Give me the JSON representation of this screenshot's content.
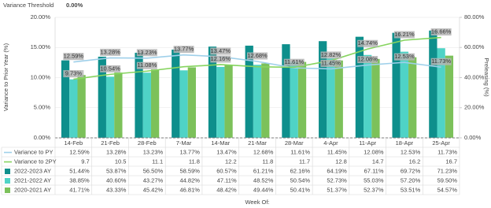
{
  "chart_data": {
    "type": "combo",
    "threshold": {
      "label": "Variance Threshold",
      "value_label": "0.00%",
      "value": 0
    },
    "y_label": "Variance to Prior Year (%)",
    "y2_label": "Preleasing (%)",
    "x_label": "Week Of:",
    "categories": [
      "14-Feb",
      "21-Feb",
      "28-Feb",
      "7-Mar",
      "14-Mar",
      "21-Mar",
      "28-Mar",
      "4-Apr",
      "11-Apr",
      "18-Apr",
      "25-Apr"
    ],
    "ylim": [
      0,
      20
    ],
    "yticks": [
      {
        "value": 0,
        "label": "0.00%"
      },
      {
        "value": 5,
        "label": "5.00%"
      },
      {
        "value": 10,
        "label": "10.00%"
      },
      {
        "value": 15,
        "label": "15.00%"
      },
      {
        "value": 20,
        "label": "20.00%"
      }
    ],
    "y2lim": [
      0,
      80
    ],
    "y2ticks": [
      {
        "value": 0,
        "label": "0.00%"
      },
      {
        "value": 20,
        "label": "20.00%"
      },
      {
        "value": 40,
        "label": "40.00%"
      },
      {
        "value": 60,
        "label": "60.00%"
      },
      {
        "value": 80,
        "label": "80.00%"
      }
    ],
    "series": [
      {
        "name": "Variance to PY",
        "kind": "line",
        "color": "#9fd0ea",
        "values": [
          12.59,
          13.28,
          13.23,
          13.77,
          13.47,
          12.68,
          11.61,
          11.45,
          12.08,
          12.53,
          11.73
        ],
        "value_labels": [
          "12.59%",
          "13.28%",
          "13.23%",
          "13.77%",
          "13.47%",
          "12.68%",
          "11.61%",
          "11.45%",
          "12.08%",
          "12.53%",
          "11.73%"
        ],
        "point_labels": [
          "12.59%",
          "13.28%",
          "13.23%",
          "13.77%",
          "13.47%",
          "12.68%",
          "11.61%",
          "11.45%",
          "12.08%",
          "12.53%",
          "11.73%"
        ]
      },
      {
        "name": "Variance to 2PY",
        "kind": "line",
        "color": "#86d45f",
        "values": [
          9.73,
          10.54,
          11.08,
          11.8,
          12.16,
          11.8,
          11.7,
          12.82,
          14.74,
          16.21,
          16.66
        ],
        "value_labels": [
          "9.7",
          "10.5",
          "11.1",
          "11.8",
          "12.2",
          "11.8",
          "11.7",
          "12.8",
          "14.7",
          "16.2",
          "16.7"
        ],
        "point_labels": [
          "9.73%",
          "10.54%",
          "11.08%",
          null,
          "12.16%",
          null,
          null,
          "12.82%",
          "14.74%",
          "16.21%",
          "16.66%"
        ]
      },
      {
        "name": "2022-2023 AY",
        "kind": "bar",
        "axis": "y2",
        "color": "#0e8f8c",
        "values": [
          51.44,
          53.87,
          56.5,
          58.59,
          60.57,
          61.21,
          62.16,
          64.19,
          67.11,
          69.72,
          71.23
        ],
        "value_labels": [
          "51.44%",
          "53.87%",
          "56.50%",
          "58.59%",
          "60.57%",
          "61.21%",
          "62.16%",
          "64.19%",
          "67.11%",
          "69.72%",
          "71.23%"
        ]
      },
      {
        "name": "2021-2022 AY",
        "kind": "bar",
        "axis": "y2",
        "color": "#4fd3c6",
        "values": [
          38.85,
          40.6,
          43.27,
          44.82,
          47.11,
          48.52,
          50.54,
          52.73,
          55.03,
          57.2,
          59.5
        ],
        "value_labels": [
          "38.85%",
          "40.60%",
          "43.27%",
          "44.82%",
          "47.11%",
          "48.52%",
          "50.54%",
          "52.73%",
          "55.03%",
          "57.20%",
          "59.50%"
        ]
      },
      {
        "name": "2020-2021 AY",
        "kind": "bar",
        "axis": "y2",
        "color": "#7cc15a",
        "values": [
          41.71,
          43.33,
          45.42,
          46.81,
          48.42,
          49.44,
          50.41,
          51.37,
          52.37,
          53.51,
          54.57
        ],
        "value_labels": [
          "41.71%",
          "43.33%",
          "45.42%",
          "46.81%",
          "48.42%",
          "49.44%",
          "50.41%",
          "51.37%",
          "52.37%",
          "53.51%",
          "54.57%"
        ]
      }
    ]
  }
}
